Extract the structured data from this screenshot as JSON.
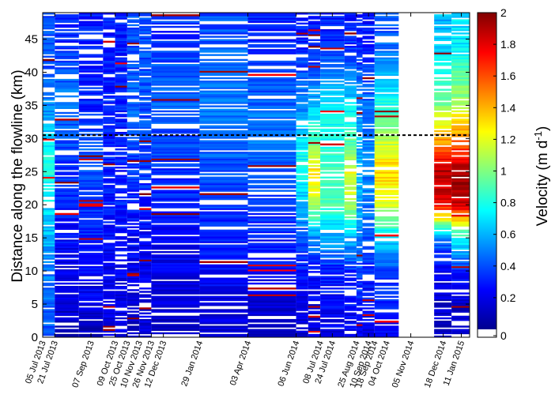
{
  "chart_data": {
    "type": "heatmap",
    "title": "",
    "xlabel": "",
    "ylabel": "Distance along the flowline (km)",
    "ylim": [
      0,
      49
    ],
    "yticks": [
      0,
      5,
      10,
      15,
      20,
      25,
      30,
      35,
      40,
      45
    ],
    "reference_line": {
      "y": 30.5,
      "style": "dashed"
    },
    "colorbar": {
      "label": "Velocity (m d",
      "label_superscript": "-1",
      "label_close": ")",
      "range": [
        0,
        2
      ],
      "ticks": [
        "0",
        "0.2",
        "0.4",
        "0.6",
        "0.8",
        "1",
        "1.2",
        "1.4",
        "1.6",
        "1.8",
        "2"
      ],
      "colormap": [
        "#00008f",
        "#0000ff",
        "#0080ff",
        "#00ffff",
        "#80ff80",
        "#ffff00",
        "#ff8000",
        "#ff0000",
        "#800000"
      ]
    },
    "x_dates": [
      "05 Jul 2013",
      "21 Jul 2013",
      "07 Sep 2013",
      "09 Oct 2013",
      "25 Oct 2013",
      "10 Nov 2013",
      "26 Nov 2013",
      "12 Dec 2013",
      "29 Jan 2014",
      "03 Apr 2014",
      "06 Jun 2014",
      "08 Jul 2014",
      "24 Jul 2014",
      "25 Aug 2014",
      "10 Sep 2014",
      "18 Sep 2014",
      "04 Oct 2014",
      "05 Nov 2014",
      "18 Dec 2014",
      "11 Jan 2015"
    ],
    "x_date_offsets_days": [
      0,
      16,
      64,
      96,
      112,
      128,
      144,
      160,
      208,
      272,
      336,
      368,
      384,
      416,
      432,
      440,
      456,
      488,
      531,
      555
    ],
    "series": [
      {
        "label": "05 Jul 2013",
        "x_start": 0,
        "x_end": 16,
        "velocity_m_per_day": [
          0.4,
          0.45,
          0.5,
          0.6,
          0.7,
          0.8,
          0.7,
          0.5,
          0.4,
          0.4
        ],
        "profile_km": [
          0,
          5,
          10,
          15,
          20,
          25,
          30,
          35,
          40,
          45
        ]
      },
      {
        "label": "21 Jul 2013",
        "x_start": 16,
        "x_end": 48,
        "velocity_m_per_day": [
          0.1,
          0.15,
          0.2,
          0.25,
          0.3,
          0.35,
          0.4,
          0.5,
          0.4,
          0.3
        ],
        "profile_km": [
          0,
          5,
          10,
          15,
          20,
          25,
          30,
          35,
          40,
          45
        ]
      },
      {
        "label": "07 Sep 2013",
        "x_start": 48,
        "x_end": 80,
        "velocity_m_per_day": [
          0.1,
          0.2,
          0.25,
          0.3,
          0.35,
          0.4,
          0.4,
          0.3,
          0.3,
          0.3
        ],
        "profile_km": [
          0,
          5,
          10,
          15,
          20,
          25,
          30,
          35,
          40,
          45
        ]
      },
      {
        "label": "09 Oct 2013",
        "x_start": 80,
        "x_end": 96,
        "velocity_m_per_day": [
          0.2,
          0.2,
          0.2,
          0.25,
          0.3,
          0.3,
          0.3,
          0.3,
          0.3,
          0.3
        ],
        "profile_km": [
          0,
          5,
          10,
          15,
          20,
          25,
          30,
          35,
          40,
          45
        ]
      },
      {
        "label": "25 Oct 2013",
        "x_start": 96,
        "x_end": 112,
        "velocity_m_per_day": [
          0.2,
          0.2,
          0.2,
          0.25,
          0.3,
          0.3,
          0.3,
          0.3,
          0.3,
          0.3
        ],
        "profile_km": [
          0,
          5,
          10,
          15,
          20,
          25,
          30,
          35,
          40,
          45
        ]
      },
      {
        "label": "10 Nov 2013",
        "x_start": 112,
        "x_end": 128,
        "velocity_m_per_day": [
          0.15,
          0.15,
          0.2,
          0.25,
          0.3,
          0.35,
          0.4,
          0.45,
          0.4,
          0.4
        ],
        "profile_km": [
          0,
          5,
          10,
          15,
          20,
          25,
          30,
          35,
          40,
          45
        ]
      },
      {
        "label": "26 Nov 2013",
        "x_start": 128,
        "x_end": 144,
        "velocity_m_per_day": [
          0.15,
          0.2,
          0.2,
          0.25,
          0.3,
          0.35,
          0.4,
          0.4,
          0.4,
          0.4
        ],
        "profile_km": [
          0,
          5,
          10,
          15,
          20,
          25,
          30,
          35,
          40,
          45
        ]
      },
      {
        "label": "12 Dec 2013",
        "x_start": 144,
        "x_end": 208,
        "velocity_m_per_day": [
          0.1,
          0.15,
          0.2,
          0.25,
          0.3,
          0.35,
          0.4,
          0.45,
          0.4,
          0.35
        ],
        "profile_km": [
          0,
          5,
          10,
          15,
          20,
          25,
          30,
          35,
          40,
          45
        ]
      },
      {
        "label": "29 Jan 2014",
        "x_start": 208,
        "x_end": 272,
        "velocity_m_per_day": [
          0.15,
          0.2,
          0.25,
          0.3,
          0.35,
          0.4,
          0.45,
          0.5,
          0.45,
          0.4
        ],
        "profile_km": [
          0,
          5,
          10,
          15,
          20,
          25,
          30,
          35,
          40,
          45
        ]
      },
      {
        "label": "03 Apr 2014",
        "x_start": 272,
        "x_end": 336,
        "velocity_m_per_day": [
          0.1,
          0.15,
          0.25,
          0.3,
          0.35,
          0.4,
          0.5,
          0.45,
          0.35,
          0.3
        ],
        "profile_km": [
          0,
          5,
          10,
          15,
          20,
          25,
          30,
          35,
          40,
          45
        ]
      },
      {
        "label": "06 Jun 2014",
        "x_start": 336,
        "x_end": 352,
        "velocity_m_per_day": [
          0.15,
          0.2,
          0.3,
          0.4,
          0.6,
          0.8,
          0.7,
          0.5,
          0.4,
          0.3
        ],
        "profile_km": [
          0,
          5,
          10,
          15,
          20,
          25,
          30,
          35,
          40,
          45
        ]
      },
      {
        "label": "08 Jul 2014",
        "x_start": 352,
        "x_end": 368,
        "velocity_m_per_day": [
          0.15,
          0.2,
          0.3,
          0.5,
          1.1,
          1.3,
          0.9,
          0.6,
          0.4,
          0.3
        ],
        "profile_km": [
          0,
          5,
          10,
          15,
          20,
          25,
          30,
          35,
          40,
          45
        ]
      },
      {
        "label": "24 Jul 2014",
        "x_start": 368,
        "x_end": 400,
        "velocity_m_per_day": [
          0.2,
          0.25,
          0.3,
          0.6,
          0.9,
          0.9,
          0.8,
          0.7,
          0.5,
          0.3
        ],
        "profile_km": [
          0,
          5,
          10,
          15,
          20,
          25,
          30,
          35,
          40,
          45
        ]
      },
      {
        "label": "25 Aug 2014",
        "x_start": 400,
        "x_end": 416,
        "velocity_m_per_day": [
          0.2,
          0.25,
          0.35,
          0.6,
          1.1,
          1.2,
          0.9,
          0.7,
          0.5,
          0.3
        ],
        "profile_km": [
          0,
          5,
          10,
          15,
          20,
          25,
          30,
          35,
          40,
          45
        ]
      },
      {
        "label": "10 Sep 2014",
        "x_start": 416,
        "x_end": 424,
        "velocity_m_per_day": [
          0.2,
          0.3,
          0.4,
          0.5,
          0.6,
          0.6,
          0.6,
          0.5,
          0.4,
          0.3
        ],
        "profile_km": [
          0,
          5,
          10,
          15,
          20,
          25,
          30,
          35,
          40,
          45
        ]
      },
      {
        "label": "18 Sep 2014",
        "x_start": 424,
        "x_end": 440,
        "velocity_m_per_day": [
          0.2,
          0.25,
          0.3,
          0.4,
          0.5,
          0.5,
          0.5,
          0.45,
          0.4,
          0.3
        ],
        "profile_km": [
          0,
          5,
          10,
          15,
          20,
          25,
          30,
          35,
          40,
          45
        ]
      },
      {
        "label": "04 Oct 2014",
        "x_start": 440,
        "x_end": 472,
        "velocity_m_per_day": [
          0.2,
          0.3,
          0.4,
          0.7,
          1.2,
          1.35,
          1.1,
          0.8,
          0.6,
          0.4
        ],
        "profile_km": [
          0,
          5,
          10,
          15,
          20,
          25,
          30,
          35,
          40,
          45
        ]
      },
      {
        "label": "18 Dec 2014",
        "x_start": 519,
        "x_end": 542,
        "velocity_m_per_day": [
          0.1,
          0.15,
          0.2,
          0.5,
          1.8,
          1.9,
          1.4,
          1.0,
          0.8,
          0.6
        ],
        "profile_km": [
          0,
          5,
          10,
          15,
          20,
          25,
          30,
          35,
          40,
          45
        ]
      },
      {
        "label": "11 Jan 2015",
        "x_start": 542,
        "x_end": 566,
        "velocity_m_per_day": [
          0.1,
          0.15,
          0.3,
          0.8,
          1.85,
          1.95,
          1.5,
          1.1,
          0.9,
          0.7
        ],
        "profile_km": [
          0,
          5,
          10,
          15,
          20,
          25,
          30,
          35,
          40,
          45
        ]
      }
    ]
  }
}
